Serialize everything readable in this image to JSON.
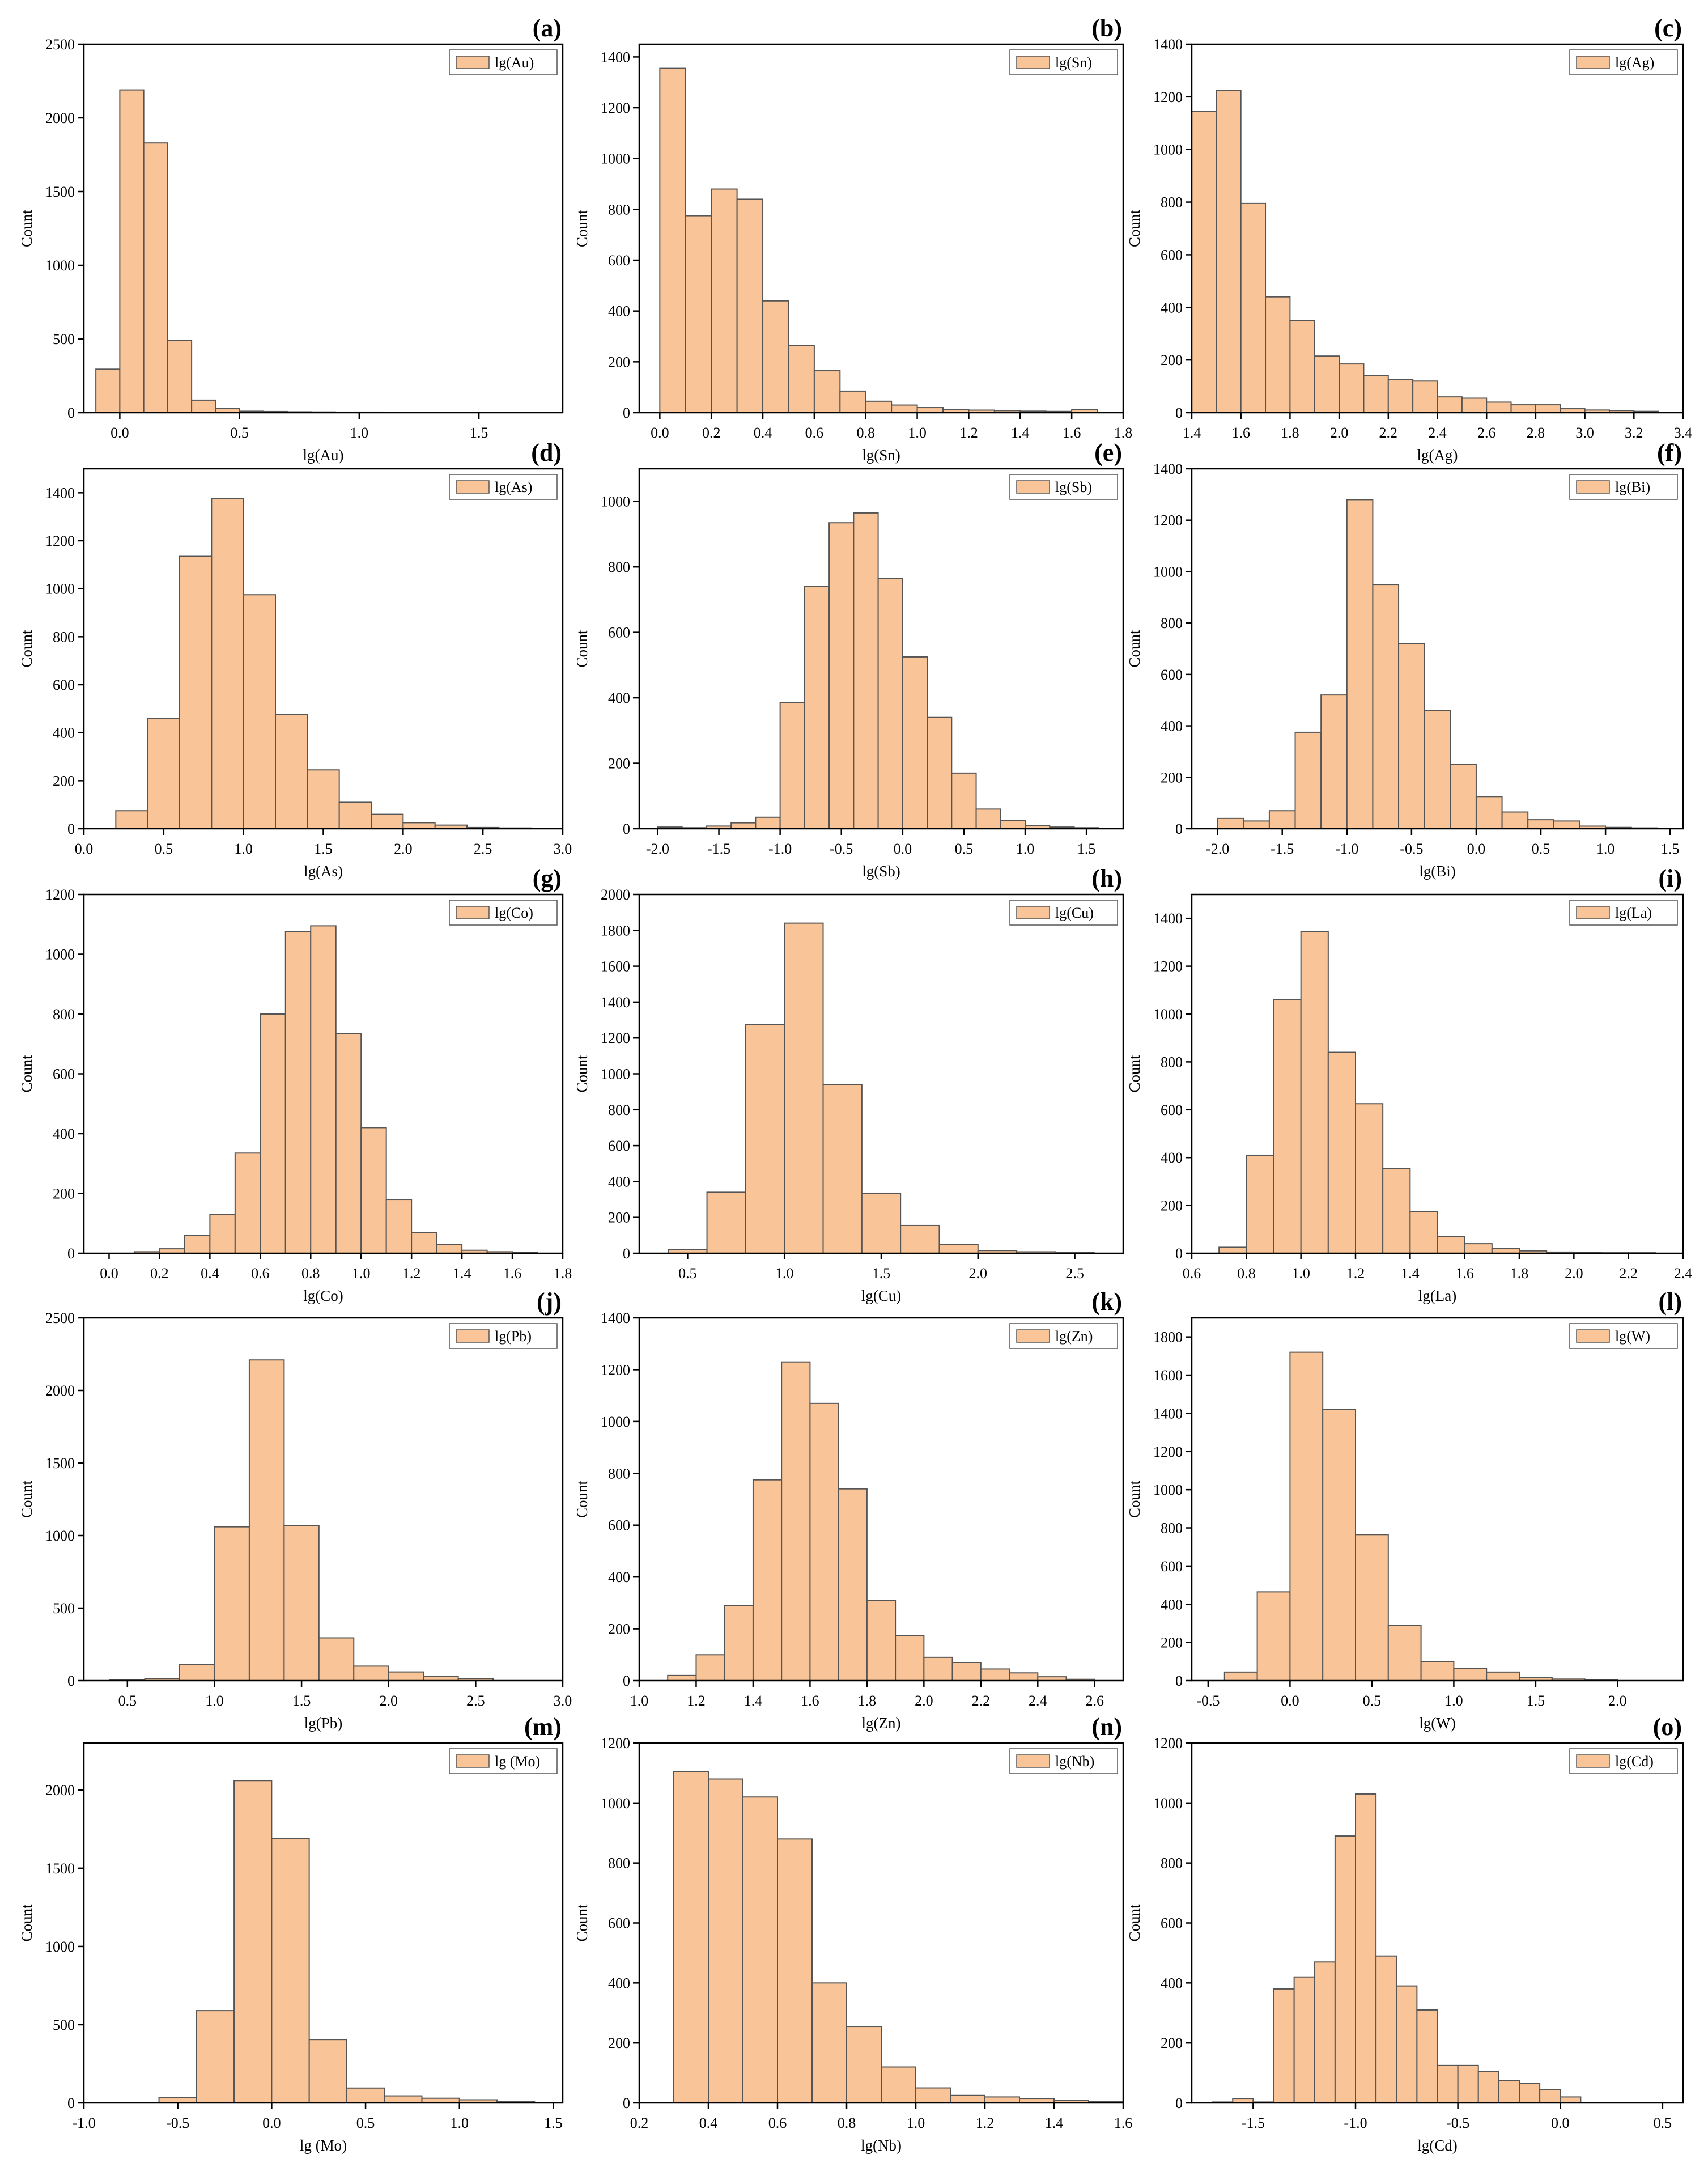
{
  "style": {
    "bar_fill": "#F9C598",
    "bar_stroke": "#555555",
    "axis_color": "#000000"
  },
  "chart_data": [
    {
      "type": "bar",
      "panel": "(a)",
      "title": "",
      "xlabel": "lg(Au)",
      "ylabel": "Count",
      "legend": "lg(Au)",
      "legend_position": "top-right",
      "xlim": [
        -0.15,
        1.85
      ],
      "ylim": [
        0,
        2500
      ],
      "xticks": [
        0.0,
        0.5,
        1.0,
        1.5
      ],
      "xtick_labels": [
        "0.0",
        "0.5",
        "1.0",
        "1.5"
      ],
      "yticks": [
        0,
        500,
        1000,
        1500,
        2000,
        2500
      ],
      "ytick_labels": [
        "0",
        "500",
        "1000",
        "1500",
        "2000",
        "2500"
      ],
      "bin_edges": [
        -0.1,
        0.0,
        0.1,
        0.2,
        0.3,
        0.4,
        0.5,
        0.6,
        0.7,
        0.8,
        0.9,
        1.0,
        1.1,
        1.2,
        1.3,
        1.4,
        1.5,
        1.6
      ],
      "values": [
        295,
        2190,
        1830,
        490,
        85,
        28,
        10,
        8,
        6,
        5,
        4,
        4,
        3,
        2,
        2,
        1,
        1
      ]
    },
    {
      "type": "bar",
      "panel": "(b)",
      "title": "",
      "xlabel": "lg(Sn)",
      "ylabel": "Count",
      "legend": "lg(Sn)",
      "legend_position": "top-right",
      "xlim": [
        -0.08,
        1.8
      ],
      "ylim": [
        0,
        1450
      ],
      "xticks": [
        0.0,
        0.2,
        0.4,
        0.6,
        0.8,
        1.0,
        1.2,
        1.4,
        1.6,
        1.8
      ],
      "xtick_labels": [
        "0.0",
        "0.2",
        "0.4",
        "0.6",
        "0.8",
        "1.0",
        "1.2",
        "1.4",
        "1.6",
        "1.8"
      ],
      "yticks": [
        0,
        200,
        400,
        600,
        800,
        1000,
        1200,
        1400
      ],
      "ytick_labels": [
        "0",
        "200",
        "400",
        "600",
        "800",
        "1000",
        "1200",
        "1400"
      ],
      "bin_edges": [
        0.0,
        0.1,
        0.2,
        0.3,
        0.4,
        0.5,
        0.6,
        0.7,
        0.8,
        0.9,
        1.0,
        1.1,
        1.2,
        1.3,
        1.4,
        1.5,
        1.6,
        1.7
      ],
      "values": [
        1355,
        775,
        880,
        840,
        440,
        265,
        165,
        85,
        45,
        30,
        20,
        12,
        10,
        8,
        6,
        5,
        12
      ]
    },
    {
      "type": "bar",
      "panel": "(c)",
      "title": "",
      "xlabel": "lg(Ag)",
      "ylabel": "Count",
      "legend": "lg(Ag)",
      "legend_position": "top-right",
      "xlim": [
        1.4,
        3.4
      ],
      "ylim": [
        0,
        1400
      ],
      "xticks": [
        1.4,
        1.6,
        1.8,
        2.0,
        2.2,
        2.4,
        2.6,
        2.8,
        3.0,
        3.2,
        3.4
      ],
      "xtick_labels": [
        "1.4",
        "1.6",
        "1.8",
        "2.0",
        "2.2",
        "2.4",
        "2.6",
        "2.8",
        "3.0",
        "3.2",
        "3.4"
      ],
      "yticks": [
        0,
        200,
        400,
        600,
        800,
        1000,
        1200,
        1400
      ],
      "ytick_labels": [
        "0",
        "200",
        "400",
        "600",
        "800",
        "1000",
        "1200",
        "1400"
      ],
      "bin_edges": [
        1.4,
        1.5,
        1.6,
        1.7,
        1.8,
        1.9,
        2.0,
        2.1,
        2.2,
        2.3,
        2.4,
        2.5,
        2.6,
        2.7,
        2.8,
        2.9,
        3.0,
        3.1,
        3.2,
        3.3
      ],
      "values": [
        1145,
        1225,
        795,
        440,
        350,
        215,
        185,
        140,
        125,
        120,
        60,
        55,
        40,
        30,
        30,
        15,
        10,
        8,
        5
      ]
    },
    {
      "type": "bar",
      "panel": "(d)",
      "title": "",
      "xlabel": "lg(As)",
      "ylabel": "Count",
      "legend": "lg(As)",
      "legend_position": "top-right",
      "xlim": [
        0.0,
        3.0
      ],
      "ylim": [
        0,
        1500
      ],
      "xticks": [
        0.0,
        0.5,
        1.0,
        1.5,
        2.0,
        2.5,
        3.0
      ],
      "xtick_labels": [
        "0.0",
        "0.5",
        "1.0",
        "1.5",
        "2.0",
        "2.5",
        "3.0"
      ],
      "yticks": [
        0,
        200,
        400,
        600,
        800,
        1000,
        1200,
        1400
      ],
      "ytick_labels": [
        "0",
        "200",
        "400",
        "600",
        "800",
        "1000",
        "1200",
        "1400"
      ],
      "bin_edges": [
        0.2,
        0.4,
        0.6,
        0.8,
        1.0,
        1.2,
        1.4,
        1.6,
        1.8,
        2.0,
        2.2,
        2.4,
        2.6,
        2.8
      ],
      "values": [
        75,
        460,
        1135,
        1375,
        975,
        475,
        245,
        110,
        60,
        25,
        15,
        5,
        3
      ]
    },
    {
      "type": "bar",
      "panel": "(e)",
      "title": "",
      "xlabel": "lg(Sb)",
      "ylabel": "Count",
      "legend": "lg(Sb)",
      "legend_position": "top-right",
      "xlim": [
        -2.15,
        1.8
      ],
      "ylim": [
        0,
        1100
      ],
      "xticks": [
        -2.0,
        -1.5,
        -1.0,
        -0.5,
        0.0,
        0.5,
        1.0,
        1.5
      ],
      "xtick_labels": [
        "-2.0",
        "-1.5",
        "-1.0",
        "-0.5",
        "0.0",
        "0.5",
        "1.0",
        "1.5"
      ],
      "yticks": [
        0,
        200,
        400,
        600,
        800,
        1000
      ],
      "ytick_labels": [
        "0",
        "200",
        "400",
        "600",
        "800",
        "1000"
      ],
      "bin_edges": [
        -2.0,
        -1.8,
        -1.6,
        -1.4,
        -1.2,
        -1.0,
        -0.8,
        -0.6,
        -0.4,
        -0.2,
        0.0,
        0.2,
        0.4,
        0.6,
        0.8,
        1.0,
        1.2,
        1.4,
        1.6
      ],
      "values": [
        5,
        3,
        8,
        18,
        35,
        385,
        740,
        935,
        965,
        765,
        525,
        340,
        170,
        60,
        25,
        10,
        5,
        3
      ]
    },
    {
      "type": "bar",
      "panel": "(f)",
      "title": "",
      "xlabel": "lg(Bi)",
      "ylabel": "Count",
      "legend": "lg(Bi)",
      "legend_position": "top-right",
      "xlim": [
        -2.2,
        1.6
      ],
      "ylim": [
        0,
        1400
      ],
      "xticks": [
        -2.0,
        -1.5,
        -1.0,
        -0.5,
        0.0,
        0.5,
        1.0,
        1.5
      ],
      "xtick_labels": [
        "-2.0",
        "-1.5",
        "-1.0",
        "-0.5",
        "0.0",
        "0.5",
        "1.0",
        "1.5"
      ],
      "yticks": [
        0,
        200,
        400,
        600,
        800,
        1000,
        1200,
        1400
      ],
      "ytick_labels": [
        "0",
        "200",
        "400",
        "600",
        "800",
        "1000",
        "1200",
        "1400"
      ],
      "bin_edges": [
        -2.0,
        -1.8,
        -1.6,
        -1.4,
        -1.2,
        -1.0,
        -0.8,
        -0.6,
        -0.4,
        -0.2,
        0.0,
        0.2,
        0.4,
        0.6,
        0.8,
        1.0,
        1.2,
        1.4
      ],
      "values": [
        40,
        30,
        70,
        375,
        520,
        1280,
        950,
        720,
        460,
        250,
        125,
        65,
        35,
        30,
        10,
        5,
        3
      ]
    },
    {
      "type": "bar",
      "panel": "(g)",
      "title": "",
      "xlabel": "lg(Co)",
      "ylabel": "Count",
      "legend": "lg(Co)",
      "legend_position": "top-right",
      "xlim": [
        -0.1,
        1.8
      ],
      "ylim": [
        0,
        1200
      ],
      "xticks": [
        0.0,
        0.2,
        0.4,
        0.6,
        0.8,
        1.0,
        1.2,
        1.4,
        1.6,
        1.8
      ],
      "xtick_labels": [
        "0.0",
        "0.2",
        "0.4",
        "0.6",
        "0.8",
        "1.0",
        "1.2",
        "1.4",
        "1.6",
        "1.8"
      ],
      "yticks": [
        0,
        200,
        400,
        600,
        800,
        1000,
        1200
      ],
      "ytick_labels": [
        "0",
        "200",
        "400",
        "600",
        "800",
        "1000",
        "1200"
      ],
      "bin_edges": [
        0.1,
        0.2,
        0.3,
        0.4,
        0.5,
        0.6,
        0.7,
        0.8,
        0.9,
        1.0,
        1.1,
        1.2,
        1.3,
        1.4,
        1.5,
        1.6,
        1.7
      ],
      "values": [
        5,
        15,
        60,
        130,
        335,
        800,
        1075,
        1095,
        735,
        420,
        180,
        70,
        30,
        10,
        5,
        3
      ]
    },
    {
      "type": "bar",
      "panel": "(h)",
      "title": "",
      "xlabel": "lg(Cu)",
      "ylabel": "Count",
      "legend": "lg(Cu)",
      "legend_position": "top-right",
      "xlim": [
        0.25,
        2.75
      ],
      "ylim": [
        0,
        2000
      ],
      "xticks": [
        0.5,
        1.0,
        1.5,
        2.0,
        2.5
      ],
      "xtick_labels": [
        "0.5",
        "1.0",
        "1.5",
        "2.0",
        "2.5"
      ],
      "yticks": [
        0,
        200,
        400,
        600,
        800,
        1000,
        1200,
        1400,
        1600,
        1800,
        2000
      ],
      "ytick_labels": [
        "0",
        "200",
        "400",
        "600",
        "800",
        "1000",
        "1200",
        "1400",
        "1600",
        "1800",
        "2000"
      ],
      "bin_edges": [
        0.4,
        0.6,
        0.8,
        1.0,
        1.2,
        1.4,
        1.6,
        1.8,
        2.0,
        2.2,
        2.4,
        2.6
      ],
      "values": [
        20,
        340,
        1275,
        1840,
        940,
        335,
        155,
        50,
        15,
        8,
        3
      ]
    },
    {
      "type": "bar",
      "panel": "(i)",
      "title": "",
      "xlabel": "lg(La)",
      "ylabel": "Count",
      "legend": "lg(La)",
      "legend_position": "top-right",
      "xlim": [
        0.6,
        2.4
      ],
      "ylim": [
        0,
        1500
      ],
      "xticks": [
        0.6,
        0.8,
        1.0,
        1.2,
        1.4,
        1.6,
        1.8,
        2.0,
        2.2,
        2.4
      ],
      "xtick_labels": [
        "0.6",
        "0.8",
        "1.0",
        "1.2",
        "1.4",
        "1.6",
        "1.8",
        "2.0",
        "2.2",
        "2.4"
      ],
      "yticks": [
        0,
        200,
        400,
        600,
        800,
        1000,
        1200,
        1400
      ],
      "ytick_labels": [
        "0",
        "200",
        "400",
        "600",
        "800",
        "1000",
        "1200",
        "1400"
      ],
      "bin_edges": [
        0.7,
        0.8,
        0.9,
        1.0,
        1.1,
        1.2,
        1.3,
        1.4,
        1.5,
        1.6,
        1.7,
        1.8,
        1.9,
        2.0,
        2.1,
        2.2,
        2.3
      ],
      "values": [
        25,
        410,
        1060,
        1345,
        840,
        625,
        355,
        175,
        70,
        40,
        20,
        10,
        5,
        3,
        2,
        2
      ]
    },
    {
      "type": "bar",
      "panel": "(j)",
      "title": "",
      "xlabel": "lg(Pb)",
      "ylabel": "Count",
      "legend": "lg(Pb)",
      "legend_position": "top-right",
      "xlim": [
        0.25,
        3.0
      ],
      "ylim": [
        0,
        2500
      ],
      "xticks": [
        0.5,
        1.0,
        1.5,
        2.0,
        2.5,
        3.0
      ],
      "xtick_labels": [
        "0.5",
        "1.0",
        "1.5",
        "2.0",
        "2.5",
        "3.0"
      ],
      "yticks": [
        0,
        500,
        1000,
        1500,
        2000,
        2500
      ],
      "ytick_labels": [
        "0",
        "500",
        "1000",
        "1500",
        "2000",
        "2500"
      ],
      "bin_edges": [
        0.4,
        0.6,
        0.8,
        1.0,
        1.2,
        1.4,
        1.6,
        1.8,
        2.0,
        2.2,
        2.4,
        2.6
      ],
      "values": [
        5,
        15,
        110,
        1060,
        2210,
        1070,
        295,
        100,
        60,
        30,
        15,
        5
      ]
    },
    {
      "type": "bar",
      "panel": "(k)",
      "title": "",
      "xlabel": "lg(Zn)",
      "ylabel": "Count",
      "legend": "lg(Zn)",
      "legend_position": "top-right",
      "xlim": [
        1.0,
        2.7
      ],
      "ylim": [
        0,
        1400
      ],
      "xticks": [
        1.0,
        1.2,
        1.4,
        1.6,
        1.8,
        2.0,
        2.2,
        2.4,
        2.6
      ],
      "xtick_labels": [
        "1.0",
        "1.2",
        "1.4",
        "1.6",
        "1.8",
        "2.0",
        "2.2",
        "2.4",
        "2.6"
      ],
      "yticks": [
        0,
        200,
        400,
        600,
        800,
        1000,
        1200,
        1400
      ],
      "ytick_labels": [
        "0",
        "200",
        "400",
        "600",
        "800",
        "1000",
        "1200",
        "1400"
      ],
      "bin_edges": [
        1.1,
        1.2,
        1.3,
        1.4,
        1.5,
        1.6,
        1.7,
        1.8,
        1.9,
        2.0,
        2.1,
        2.2,
        2.3,
        2.4,
        2.5,
        2.6
      ],
      "values": [
        20,
        100,
        290,
        775,
        1230,
        1070,
        740,
        310,
        175,
        90,
        70,
        45,
        30,
        15,
        5
      ]
    },
    {
      "type": "bar",
      "panel": "(l)",
      "title": "",
      "xlabel": "lg(W)",
      "ylabel": "Count",
      "legend": "lg(W)",
      "legend_position": "top-right",
      "xlim": [
        -0.6,
        2.4
      ],
      "ylim": [
        0,
        1900
      ],
      "xticks": [
        -0.5,
        0.0,
        0.5,
        1.0,
        1.5,
        2.0
      ],
      "xtick_labels": [
        "-0.5",
        "0.0",
        "0.5",
        "1.0",
        "1.5",
        "2.0"
      ],
      "yticks": [
        0,
        200,
        400,
        600,
        800,
        1000,
        1200,
        1400,
        1600,
        1800
      ],
      "ytick_labels": [
        "0",
        "200",
        "400",
        "600",
        "800",
        "1000",
        "1200",
        "1400",
        "1600",
        "1800"
      ],
      "bin_edges": [
        -0.4,
        -0.2,
        0.0,
        0.2,
        0.4,
        0.6,
        0.8,
        1.0,
        1.2,
        1.4,
        1.6,
        1.8,
        2.0
      ],
      "values": [
        45,
        465,
        1720,
        1420,
        765,
        290,
        100,
        65,
        45,
        15,
        8,
        5
      ]
    },
    {
      "type": "bar",
      "panel": "(m)",
      "title": "",
      "xlabel": "lg (Mo)",
      "ylabel": "Count",
      "legend": "lg (Mo)",
      "legend_position": "top-right",
      "xlim": [
        -1.0,
        1.55
      ],
      "ylim": [
        0,
        2300
      ],
      "xticks": [
        -1.0,
        -0.5,
        0.0,
        0.5,
        1.0,
        1.5
      ],
      "xtick_labels": [
        "-1.0",
        "-0.5",
        "0.0",
        "0.5",
        "1.0",
        "1.5"
      ],
      "yticks": [
        0,
        500,
        1000,
        1500,
        2000
      ],
      "ytick_labels": [
        "0",
        "500",
        "1000",
        "1500",
        "2000"
      ],
      "bin_edges": [
        -0.6,
        -0.4,
        -0.2,
        0.0,
        0.2,
        0.4,
        0.6,
        0.8,
        1.0,
        1.2,
        1.4
      ],
      "values": [
        35,
        590,
        2060,
        1690,
        405,
        95,
        45,
        30,
        20,
        10
      ]
    },
    {
      "type": "bar",
      "panel": "(n)",
      "title": "",
      "xlabel": "lg(Nb)",
      "ylabel": "Count",
      "legend": "lg(Nb)",
      "legend_position": "top-right",
      "xlim": [
        0.2,
        1.6
      ],
      "ylim": [
        0,
        1200
      ],
      "xticks": [
        0.2,
        0.4,
        0.6,
        0.8,
        1.0,
        1.2,
        1.4,
        1.6
      ],
      "xtick_labels": [
        "0.2",
        "0.4",
        "0.6",
        "0.8",
        "1.0",
        "1.2",
        "1.4",
        "1.6"
      ],
      "yticks": [
        0,
        200,
        400,
        600,
        800,
        1000,
        1200
      ],
      "ytick_labels": [
        "0",
        "200",
        "400",
        "600",
        "800",
        "1000",
        "1200"
      ],
      "bin_edges": [
        0.3,
        0.4,
        0.5,
        0.6,
        0.7,
        0.8,
        0.9,
        1.0,
        1.1,
        1.2,
        1.3,
        1.4,
        1.5,
        1.6
      ],
      "values": [
        1105,
        1080,
        1020,
        880,
        400,
        255,
        120,
        50,
        25,
        20,
        15,
        8,
        5
      ]
    },
    {
      "type": "bar",
      "panel": "(o)",
      "title": "",
      "xlabel": "lg(Cd)",
      "ylabel": "Count",
      "legend": "lg(Cd)",
      "legend_position": "top-right",
      "xlim": [
        -1.8,
        0.6
      ],
      "ylim": [
        0,
        1200
      ],
      "xticks": [
        -1.5,
        -1.0,
        -0.5,
        0.0,
        0.5
      ],
      "xtick_labels": [
        "-1.5",
        "-1.0",
        "-0.5",
        "0.0",
        "0.5"
      ],
      "yticks": [
        0,
        200,
        400,
        600,
        800,
        1000,
        1200
      ],
      "ytick_labels": [
        "0",
        "200",
        "400",
        "600",
        "800",
        "1000",
        "1200"
      ],
      "bin_edges": [
        -1.7,
        -1.6,
        -1.5,
        -1.4,
        -1.3,
        -1.2,
        -1.1,
        -1.0,
        -0.9,
        -0.8,
        -0.7,
        -0.6,
        -0.5,
        -0.4,
        -0.3,
        -0.2,
        -0.1,
        0.0,
        0.1
      ],
      "values": [
        3,
        15,
        3,
        380,
        420,
        470,
        890,
        1030,
        490,
        390,
        310,
        125,
        125,
        105,
        75,
        65,
        45,
        20
      ]
    }
  ]
}
